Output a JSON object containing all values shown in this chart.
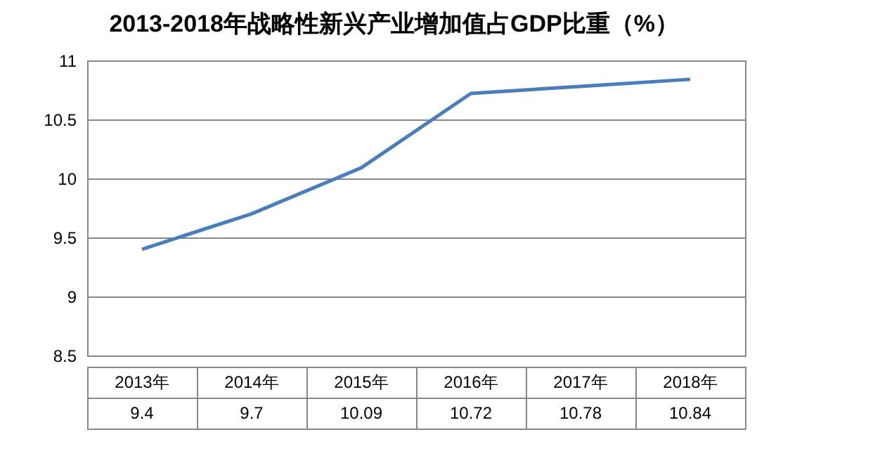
{
  "chart_data": {
    "type": "line",
    "title": "2013-2018年战略性新兴产业增加值占GDP比重（%）",
    "categories": [
      "2013年",
      "2014年",
      "2015年",
      "2016年",
      "2017年",
      "2018年"
    ],
    "series": [
      {
        "color": "#4a7ebb",
        "values": [
          9.4,
          9.7,
          10.09,
          10.72,
          10.78,
          10.84
        ]
      }
    ],
    "ylim": [
      8.5,
      11
    ],
    "yticks": [
      8.5,
      9,
      9.5,
      10,
      10.5,
      11
    ],
    "grid": "y",
    "data_labels": true,
    "marker": "none",
    "legend": false
  }
}
